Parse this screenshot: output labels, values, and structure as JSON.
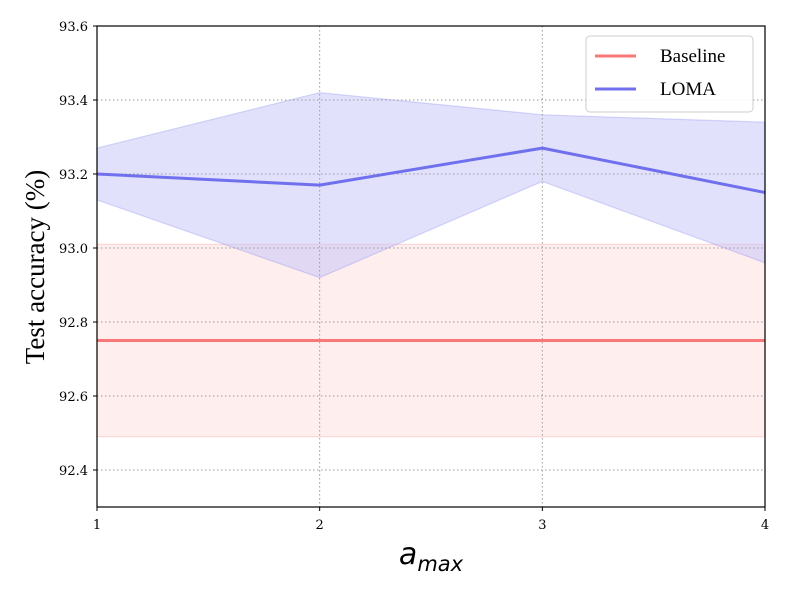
{
  "chart_data": {
    "type": "line",
    "xlabel": {
      "main": "a",
      "sub": "max"
    },
    "ylabel": "Test accuracy (%)",
    "x": [
      1,
      2,
      3,
      4
    ],
    "xticks": [
      "1",
      "2",
      "3",
      "4"
    ],
    "xlim": [
      1,
      4
    ],
    "yticks": [
      "92.4",
      "92.6",
      "92.8",
      "93.0",
      "93.2",
      "93.4",
      "93.6"
    ],
    "ytick_values": [
      92.4,
      92.6,
      92.8,
      93.0,
      93.2,
      93.4,
      93.6
    ],
    "ylim": [
      92.3,
      93.6
    ],
    "grid": true,
    "legend_position": "top-right",
    "series": [
      {
        "name": "Baseline",
        "color": "#f87878",
        "band_color": "#ffe0e0",
        "values": [
          92.75,
          92.75,
          92.75,
          92.75
        ],
        "lower": [
          92.49,
          92.49,
          92.49,
          92.49
        ],
        "upper": [
          93.01,
          93.01,
          93.01,
          93.01
        ]
      },
      {
        "name": "LOMA",
        "color": "#7070ee",
        "band_color": "#c8c8f8",
        "values": [
          93.2,
          93.17,
          93.27,
          93.15
        ],
        "lower": [
          93.13,
          92.92,
          93.18,
          92.96
        ],
        "upper": [
          93.27,
          93.42,
          93.36,
          93.34
        ]
      }
    ]
  }
}
